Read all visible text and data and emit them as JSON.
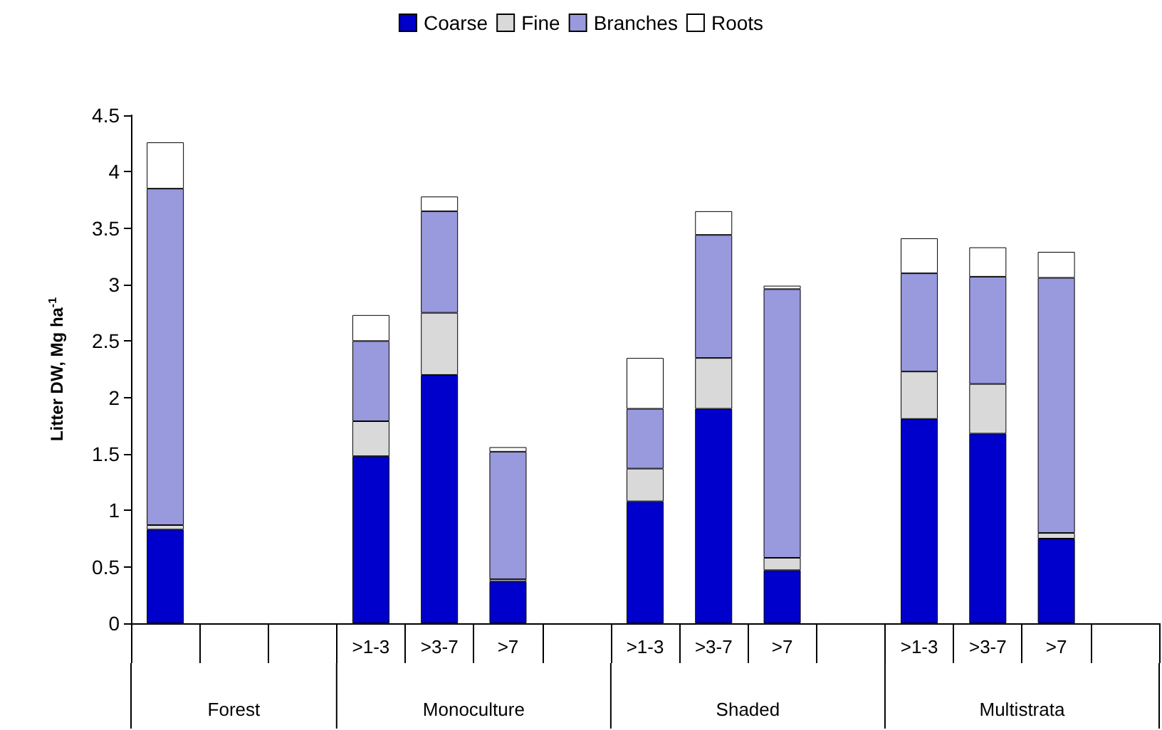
{
  "chart_data": {
    "type": "bar",
    "stacked": true,
    "ylabel": "Litter DW, Mg ha$^{-1}$",
    "categories": [
      null,
      null,
      null,
      ">1-3",
      ">3-7",
      ">7",
      null,
      ">1-3",
      ">3-7",
      ">7",
      null,
      ">1-3",
      ">3-7",
      ">7",
      null
    ],
    "series": [
      {
        "name": "Coarse",
        "color": "#0000cc",
        "values": [
          0.83,
          null,
          null,
          1.48,
          2.2,
          0.37,
          null,
          1.08,
          1.9,
          0.47,
          null,
          1.81,
          1.68,
          0.75,
          null
        ]
      },
      {
        "name": "Fine",
        "color": "#d9d9d9",
        "values": [
          0.04,
          null,
          null,
          0.31,
          0.55,
          0.02,
          null,
          0.29,
          0.45,
          0.11,
          null,
          0.42,
          0.44,
          0.05,
          null
        ]
      },
      {
        "name": "Branches",
        "color": "#9999dd",
        "values": [
          2.98,
          null,
          null,
          0.71,
          0.9,
          1.13,
          null,
          0.53,
          1.09,
          2.38,
          null,
          0.87,
          0.95,
          2.26,
          null
        ]
      },
      {
        "name": "Roots",
        "color": "#ffffff",
        "values": [
          0.41,
          null,
          null,
          0.23,
          0.13,
          0.04,
          null,
          0.45,
          0.21,
          0.03,
          null,
          0.31,
          0.26,
          0.23,
          null
        ]
      }
    ],
    "ylim": [
      0,
      4.5
    ],
    "yticks": [
      0,
      0.5,
      1,
      1.5,
      2,
      2.5,
      3,
      3.5,
      4,
      4.5
    ],
    "grid": false,
    "legend": "top",
    "annotations": [
      "Forest",
      "Monoculture",
      "Shaded",
      "Multistrata"
    ]
  }
}
